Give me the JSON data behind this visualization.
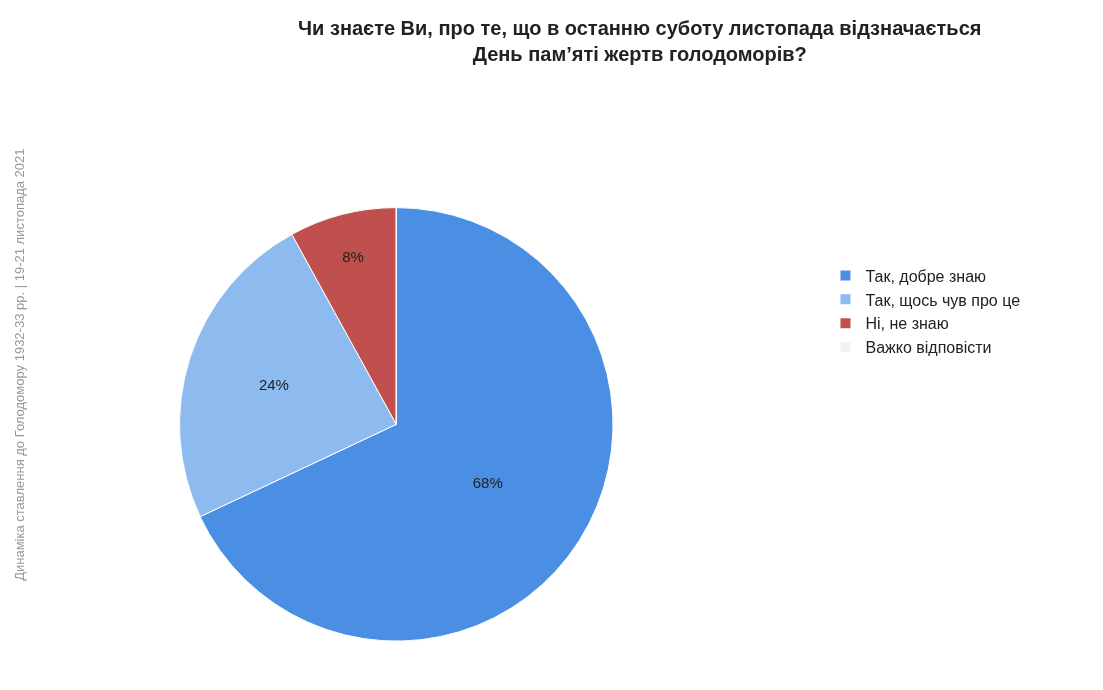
{
  "chart_data": {
    "type": "pie",
    "title": "Чи знаєте Ви, про те, що в останню суботу листопада відзначається\nДень пам’яті жертв голодоморів?",
    "categories": [
      "Так, добре знаю",
      "Так, щось чув про це",
      "Ні, не знаю",
      "Важко відповісти"
    ],
    "values": [
      68,
      24,
      8,
      0
    ],
    "colors": [
      "#4a8fe3",
      "#8dbbf0",
      "#c0504d",
      "#f2f2f2"
    ],
    "value_labels": [
      "68%",
      "24%",
      "8%",
      null
    ],
    "legend": "right",
    "annotations": [
      "Динаміка ставлення до Голодомору 1932-33 рр. | 19-21 листопада 2021"
    ]
  }
}
